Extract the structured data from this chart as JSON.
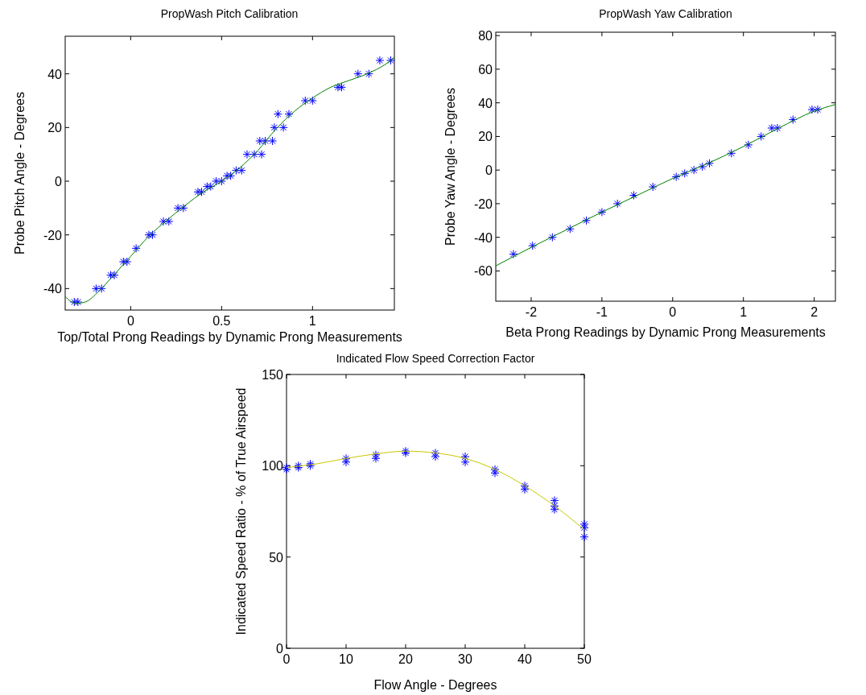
{
  "chart_data": [
    {
      "type": "scatter",
      "title": "PropWash Pitch Calibration",
      "xlabel": "Top/Total Prong Readings by Dynamic Prong Measurements",
      "ylabel": "Probe Pitch Angle - Degrees",
      "xlim": [
        -0.36,
        1.45
      ],
      "ylim": [
        -48,
        54
      ],
      "xticks": [
        0,
        0.5,
        1
      ],
      "yticks": [
        -40,
        -20,
        0,
        20,
        40
      ],
      "grid": false,
      "series": [
        {
          "marker": "cross",
          "color": "#0000ff",
          "x": [
            -0.31,
            -0.29,
            -0.19,
            -0.16,
            -0.11,
            -0.09,
            -0.04,
            -0.02,
            0.03,
            0.1,
            0.12,
            0.18,
            0.21,
            0.26,
            0.29,
            0.37,
            0.39,
            0.42,
            0.44,
            0.47,
            0.5,
            0.53,
            0.55,
            0.58,
            0.61,
            0.64,
            0.68,
            0.72,
            0.71,
            0.74,
            0.78,
            0.79,
            0.84,
            0.81,
            0.87,
            0.96,
            1.0,
            1.14,
            1.16,
            1.25,
            1.31,
            1.37,
            1.43
          ],
          "values": [
            -45,
            -45,
            -40,
            -40,
            -35,
            -35,
            -30,
            -30,
            -25,
            -20,
            -20,
            -15,
            -15,
            -10,
            -10,
            -4,
            -4,
            -2,
            -2,
            0,
            0,
            2,
            2,
            4,
            4,
            10,
            10,
            10,
            15,
            15,
            15,
            20,
            20,
            25,
            25,
            30,
            30,
            35,
            35,
            40,
            40,
            45,
            45
          ]
        },
        {
          "type": "line",
          "marker": "none",
          "color": "#008000",
          "x": [
            -0.36,
            -0.3,
            -0.25,
            -0.175,
            -0.1,
            0,
            0.1,
            0.2,
            0.3,
            0.4,
            0.5,
            0.6,
            0.7,
            0.8,
            0.9,
            1.0,
            1.1,
            1.2,
            1.3,
            1.4,
            1.45
          ],
          "values": [
            -43,
            -45.5,
            -45,
            -41,
            -35.5,
            -28,
            -20.5,
            -14.5,
            -9,
            -4,
            0,
            5,
            11.5,
            19.5,
            26,
            31,
            35,
            37.5,
            40,
            43.5,
            46
          ]
        }
      ]
    },
    {
      "type": "scatter",
      "title": "PropWash Yaw Calibration",
      "xlabel": "Beta Prong Readings by Dynamic Prong Measurements",
      "ylabel": "Probe Yaw Angle - Degrees",
      "xlim": [
        -2.5,
        2.3
      ],
      "ylim": [
        -78,
        82
      ],
      "xticks": [
        -2,
        -1,
        0,
        1,
        2
      ],
      "yticks": [
        -60,
        -40,
        -20,
        0,
        20,
        40,
        60,
        80
      ],
      "grid": false,
      "series": [
        {
          "marker": "cross",
          "color": "#0000ff",
          "x": [
            -2.25,
            -1.98,
            -1.7,
            -1.45,
            -1.22,
            -1.0,
            -0.78,
            -0.55,
            -0.28,
            0.05,
            0.17,
            0.3,
            0.42,
            0.52,
            0.83,
            1.07,
            1.25,
            1.4,
            1.48,
            1.7,
            1.97,
            2.05
          ],
          "values": [
            -50,
            -45,
            -40,
            -35,
            -30,
            -25,
            -20,
            -15,
            -10,
            -4,
            -2,
            0,
            2,
            4,
            10,
            15,
            20,
            25,
            25,
            30,
            36,
            36
          ]
        },
        {
          "type": "line",
          "marker": "none",
          "color": "#008000",
          "x": [
            -2.5,
            -2,
            -1.5,
            -1,
            -0.5,
            0,
            0.5,
            1,
            1.5,
            2,
            2.3
          ],
          "values": [
            -57,
            -46,
            -35.5,
            -25,
            -15,
            -5,
            4,
            14,
            25,
            35,
            39
          ]
        }
      ]
    },
    {
      "type": "scatter",
      "title": "Indicated Flow Speed Correction Factor",
      "xlabel": "Flow Angle - Degrees",
      "ylabel": "Indicated Speed Ratio - % of True Airspeed",
      "xlim": [
        0,
        50
      ],
      "ylim": [
        0,
        150
      ],
      "xticks": [
        0,
        10,
        20,
        30,
        40,
        50
      ],
      "yticks": [
        0,
        50,
        100,
        150
      ],
      "grid": false,
      "series": [
        {
          "marker": "cross",
          "color": "#0000ff",
          "x": [
            0,
            0,
            2,
            2,
            4,
            4,
            10,
            10,
            15,
            15,
            20,
            20,
            25,
            25,
            30,
            30,
            35,
            35,
            40,
            40,
            45,
            45,
            45,
            50,
            50,
            50
          ],
          "values": [
            98,
            99,
            99,
            100,
            100,
            101,
            102,
            104,
            104,
            106,
            107,
            108,
            105,
            107,
            102,
            105,
            96,
            98,
            87,
            89,
            76,
            78,
            81,
            61,
            66,
            68
          ]
        },
        {
          "type": "line",
          "marker": "none",
          "color": "#c8c800",
          "x": [
            0,
            5,
            10,
            15,
            20,
            25,
            30,
            35,
            40,
            45,
            50
          ],
          "values": [
            99,
            101,
            104,
            106.5,
            108,
            107,
            104,
            98,
            89,
            78,
            65
          ]
        }
      ]
    }
  ]
}
